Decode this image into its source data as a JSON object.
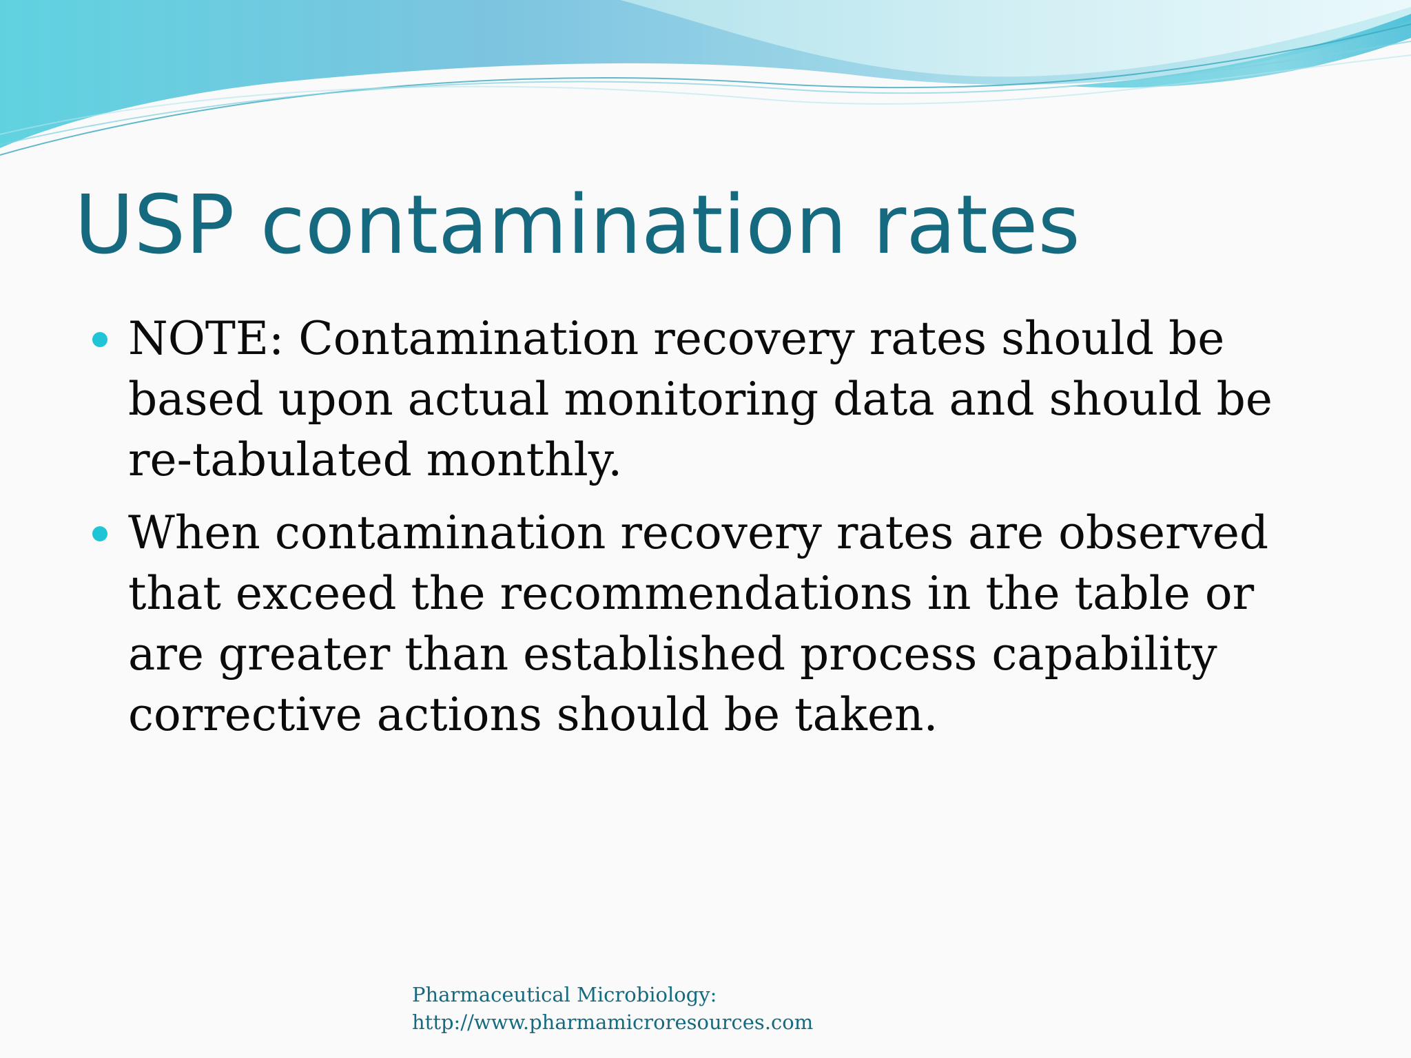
{
  "slide": {
    "title": "USP contamination rates",
    "bullets": [
      {
        "text": "NOTE: Contamination recovery rates should be based upon actual monitoring data and should be re-tabulated monthly."
      },
      {
        "text": "When contamination recovery rates are observed that exceed the recommendations in the table or are greater than established process capability corrective actions should be taken."
      }
    ],
    "footer": {
      "line1": "Pharmaceutical Microbiology:",
      "line2": "http://www.pharmamicroresources.com"
    }
  },
  "colors": {
    "title": "#156a80",
    "body_text": "#0b0b0b",
    "bullet": "#1fc4d6",
    "wave_light": "#8fd8e6",
    "wave_dark": "#5cc6dc",
    "background": "#fafafb"
  },
  "icons": {
    "bullet_marker": "filled-circle"
  }
}
